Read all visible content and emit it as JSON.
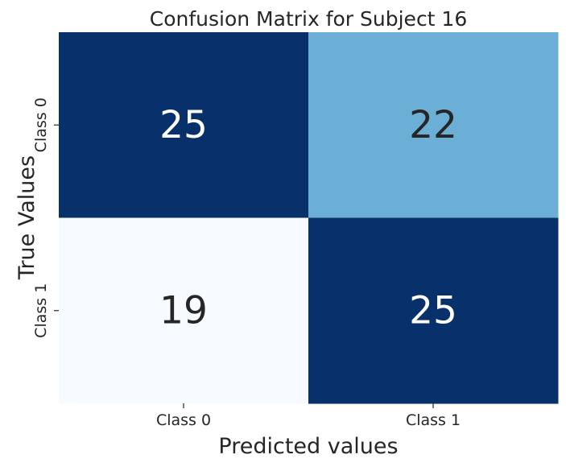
{
  "chart_data": {
    "type": "heatmap",
    "title": "Confusion Matrix for Subject 16",
    "xlabel": "Predicted values",
    "ylabel": "True Values",
    "x_categories": [
      "Class 0",
      "Class 1"
    ],
    "y_categories": [
      "Class 0",
      "Class 1"
    ],
    "values": [
      [
        25,
        22
      ],
      [
        19,
        25
      ]
    ],
    "colormap": "Blues",
    "value_range": [
      19,
      25
    ],
    "colorbar": false,
    "grid": false,
    "colors": {
      "low": "#f7fbff",
      "mid": "#6baed6",
      "high": "#08306b",
      "text_on_dark": "#ffffff",
      "text_on_light": "#262626"
    }
  }
}
